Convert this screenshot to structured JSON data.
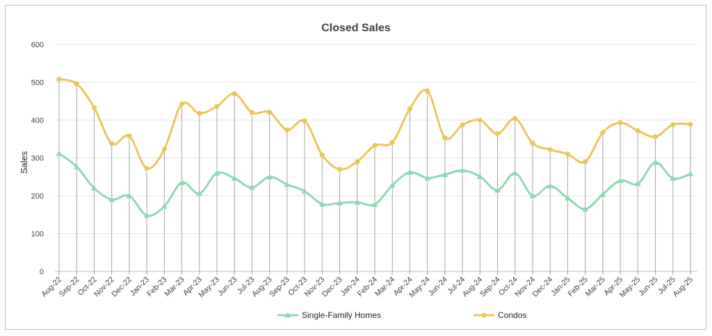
{
  "chart_data": {
    "type": "line",
    "title": "Closed Sales",
    "xlabel": "",
    "ylabel": "Sales",
    "ylim": [
      0,
      600
    ],
    "yticks": [
      "0",
      "100",
      "200",
      "300",
      "400",
      "500",
      "600"
    ],
    "grid": "horizontal gridlines; vertical drop lines at each category",
    "legend_position": "bottom",
    "categories": [
      "Aug-22",
      "Sep-22",
      "Oct-22",
      "Nov-22",
      "Dec-22",
      "Jan-23",
      "Feb-23",
      "Mar-23",
      "Apr-23",
      "May-23",
      "Jun-23",
      "Jul-23",
      "Aug-23",
      "Sep-23",
      "Oct-23",
      "Nov-23",
      "Dec-23",
      "Jan-24",
      "Feb-24",
      "Mar-24",
      "Apr-24",
      "May-24",
      "Jun-24",
      "Jul-24",
      "Aug-24",
      "Sep-24",
      "Oct-24",
      "Nov-24",
      "Dec-24",
      "Jan-25",
      "Feb-25",
      "Mar-25",
      "Apr-25",
      "May-25",
      "Jun-25",
      "Jul-25",
      "Aug-25"
    ],
    "series": [
      {
        "name": "Single-Family Homes",
        "color": "#8ed9b2",
        "marker": "triangle",
        "values": [
          312,
          277,
          220,
          190,
          200,
          148,
          172,
          235,
          206,
          260,
          246,
          222,
          250,
          230,
          212,
          178,
          181,
          183,
          177,
          228,
          262,
          247,
          256,
          267,
          251,
          215,
          260,
          200,
          226,
          194,
          165,
          204,
          240,
          232,
          288,
          246,
          258
        ]
      },
      {
        "name": "Condos",
        "color": "#e8c75a",
        "marker": "circle",
        "values": [
          508,
          496,
          433,
          338,
          358,
          272,
          323,
          443,
          418,
          436,
          470,
          420,
          421,
          374,
          398,
          308,
          270,
          290,
          333,
          341,
          430,
          477,
          353,
          387,
          400,
          364,
          404,
          339,
          322,
          310,
          290,
          367,
          393,
          372,
          356,
          388,
          389
        ]
      }
    ]
  }
}
